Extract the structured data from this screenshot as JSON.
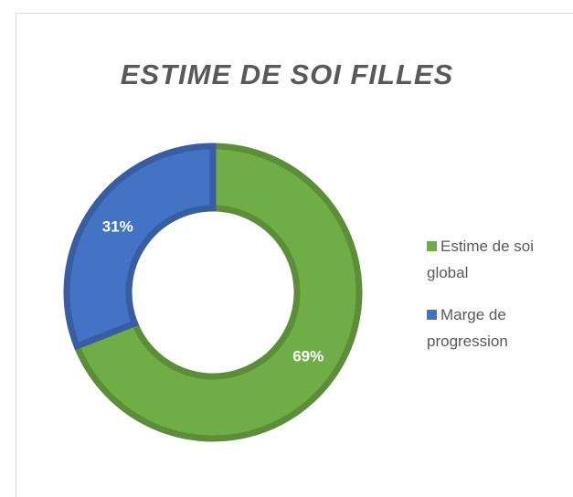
{
  "chart_data": {
    "type": "donut",
    "title": "ESTIME DE SOI FILLES",
    "categories": [
      "Estime de soi global",
      "Marge de progression"
    ],
    "values": [
      69,
      31
    ],
    "value_labels": [
      "69%",
      "31%"
    ],
    "colors": [
      "#70ad47",
      "#4472c4"
    ],
    "legend": "right"
  }
}
